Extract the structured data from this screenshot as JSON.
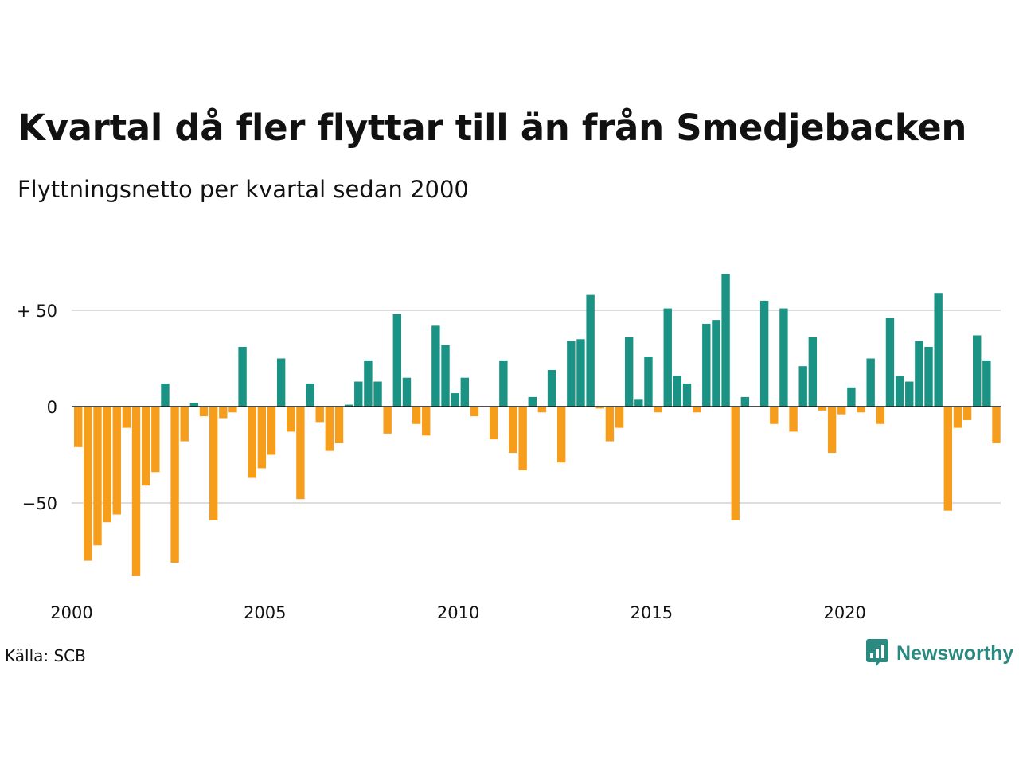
{
  "title": "Kvartal då fler flyttar till än från Smedjebacken",
  "subtitle": "Flyttningsnetto per kvartal sedan 2000",
  "source": "Källa: SCB",
  "brand": {
    "name": "Newsworthy",
    "icon": "newsworthy-logo-icon",
    "color": "#2a8a80"
  },
  "colors": {
    "positive": "#1b9384",
    "negative": "#f79d1c",
    "grid": "#dddddd",
    "zero_line": "#111111"
  },
  "chart_data": {
    "type": "bar",
    "title": "Kvartal då fler flyttar till än från Smedjebacken",
    "subtitle": "Flyttningsnetto per kvartal sedan 2000",
    "xlabel": "",
    "ylabel": "",
    "start_year": 2000,
    "quarters_per_year": 4,
    "ylim": [
      -92,
      70
    ],
    "y_ticks": [
      {
        "value": 50,
        "label": "+ 50"
      },
      {
        "value": 0,
        "label": "0"
      },
      {
        "value": -50,
        "label": "−50"
      }
    ],
    "x_ticks": [
      "2000",
      "2005",
      "2010",
      "2015",
      "2020"
    ],
    "grid": true,
    "legend": "none",
    "categories": [
      "2000 K1",
      "2000 K2",
      "2000 K3",
      "2000 K4",
      "2001 K1",
      "2001 K2",
      "2001 K3",
      "2001 K4",
      "2002 K1",
      "2002 K2",
      "2002 K3",
      "2002 K4",
      "2003 K1",
      "2003 K2",
      "2003 K3",
      "2003 K4",
      "2004 K1",
      "2004 K2",
      "2004 K3",
      "2004 K4",
      "2005 K1",
      "2005 K2",
      "2005 K3",
      "2005 K4",
      "2006 K1",
      "2006 K2",
      "2006 K3",
      "2006 K4",
      "2007 K1",
      "2007 K2",
      "2007 K3",
      "2007 K4",
      "2008 K1",
      "2008 K2",
      "2008 K3",
      "2008 K4",
      "2009 K1",
      "2009 K2",
      "2009 K3",
      "2009 K4",
      "2010 K1",
      "2010 K2",
      "2010 K3",
      "2010 K4",
      "2011 K1",
      "2011 K2",
      "2011 K3",
      "2011 K4",
      "2012 K1",
      "2012 K2",
      "2012 K3",
      "2012 K4",
      "2013 K1",
      "2013 K2",
      "2013 K3",
      "2013 K4",
      "2014 K1",
      "2014 K2",
      "2014 K3",
      "2014 K4",
      "2015 K1",
      "2015 K2",
      "2015 K3",
      "2015 K4",
      "2016 K1",
      "2016 K2",
      "2016 K3",
      "2016 K4",
      "2017 K1",
      "2017 K2",
      "2017 K3",
      "2017 K4",
      "2018 K1",
      "2018 K2",
      "2018 K3",
      "2018 K4",
      "2019 K1",
      "2019 K2",
      "2019 K3",
      "2019 K4",
      "2020 K1",
      "2020 K2",
      "2020 K3",
      "2020 K4",
      "2021 K1",
      "2021 K2",
      "2021 K3",
      "2021 K4",
      "2022 K1",
      "2022 K2",
      "2022 K3",
      "2022 K4",
      "2023 K1",
      "2023 K2",
      "2023 K3",
      "2023 K4",
      "2024 K1"
    ],
    "values": [
      -21,
      -80,
      -72,
      -60,
      -56,
      -11,
      -88,
      -41,
      -34,
      12,
      -81,
      -18,
      2,
      -5,
      -59,
      -6,
      -3,
      31,
      -37,
      -32,
      -25,
      25,
      -13,
      -48,
      12,
      -8,
      -23,
      -19,
      1,
      13,
      24,
      13,
      -14,
      48,
      15,
      -9,
      -15,
      42,
      32,
      7,
      15,
      -5,
      0,
      -17,
      24,
      -24,
      -33,
      5,
      -3,
      19,
      -29,
      34,
      35,
      58,
      -1,
      -18,
      -11,
      36,
      4,
      26,
      -3,
      51,
      16,
      12,
      -3,
      43,
      45,
      69,
      -59,
      5,
      0,
      55,
      -9,
      51,
      -13,
      21,
      36,
      -2,
      -24,
      -4,
      10,
      -3,
      25,
      -9,
      46,
      16,
      13,
      34,
      31,
      59,
      -54,
      -11,
      -7,
      37,
      24,
      -19,
      0
    ]
  }
}
